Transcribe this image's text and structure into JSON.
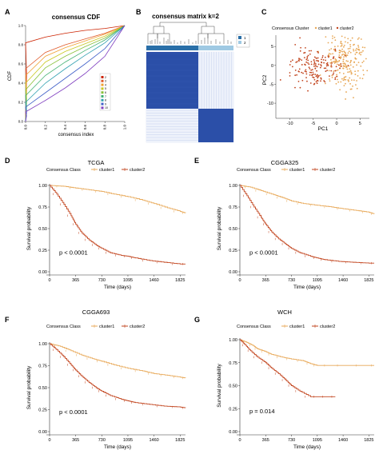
{
  "panels": {
    "A": {
      "letter": "A",
      "title": "consensus CDF",
      "ylabel": "CDF",
      "xlabel": "consensus index"
    },
    "B": {
      "letter": "B",
      "title": "consensus matrix k=2",
      "legend": [
        "1",
        "2"
      ]
    },
    "C": {
      "letter": "C",
      "legend_title": "Consensus Cluster",
      "legend": [
        "cluster1",
        "cluster2"
      ],
      "xlabel": "PC1",
      "ylabel": "PC2"
    },
    "D": {
      "letter": "D",
      "title": "TCGA",
      "pvalue": "p < 0.0001"
    },
    "E": {
      "letter": "E",
      "title": "CGGA325",
      "pvalue": "p < 0.0001"
    },
    "F": {
      "letter": "F",
      "title": "CGGA693",
      "pvalue": "p < 0.0001"
    },
    "G": {
      "letter": "G",
      "title": "WCH",
      "pvalue": "p = 0.014"
    }
  },
  "survival_common": {
    "legend_title": "Consensus Class",
    "series_names": [
      "cluster1",
      "cluster2"
    ],
    "xlabel": "Time (days)",
    "ylabel": "Survival probability"
  },
  "colors": {
    "cluster1": "#e8a857",
    "cluster2": "#c2451f",
    "matrix_blue": "#2b4fa8",
    "cdf_palette": [
      "#cc2200",
      "#e05a2a",
      "#f0a030",
      "#c8c820",
      "#88c038",
      "#40b070",
      "#30a0b0",
      "#4060c8",
      "#8040c0",
      "#c040a0"
    ]
  },
  "chart_data": [
    {
      "panel": "A",
      "type": "line",
      "title": "consensus CDF",
      "xlabel": "consensus index",
      "ylabel": "CDF",
      "xlim": [
        0,
        1
      ],
      "ylim": [
        0,
        1
      ],
      "xticks": [
        "0.0",
        "0.2",
        "0.4",
        "0.6",
        "0.8",
        "1.0"
      ],
      "yticks": [
        "0.0",
        "0.2",
        "0.4",
        "0.6",
        "0.8",
        "1.0"
      ],
      "series": [
        {
          "name": "2",
          "values_at_x": [
            0.82,
            0.88,
            0.92,
            0.95,
            0.97,
            1.0
          ]
        },
        {
          "name": "3",
          "values_at_x": [
            0.55,
            0.72,
            0.8,
            0.86,
            0.92,
            1.0
          ]
        },
        {
          "name": "4",
          "values_at_x": [
            0.48,
            0.68,
            0.77,
            0.84,
            0.91,
            1.0
          ]
        },
        {
          "name": "5",
          "values_at_x": [
            0.4,
            0.62,
            0.73,
            0.81,
            0.89,
            1.0
          ]
        },
        {
          "name": "6",
          "values_at_x": [
            0.33,
            0.56,
            0.68,
            0.78,
            0.87,
            1.0
          ]
        },
        {
          "name": "7",
          "values_at_x": [
            0.27,
            0.48,
            0.62,
            0.74,
            0.85,
            1.0
          ]
        },
        {
          "name": "8",
          "values_at_x": [
            0.2,
            0.4,
            0.55,
            0.69,
            0.82,
            1.0
          ]
        },
        {
          "name": "9",
          "values_at_x": [
            0.15,
            0.3,
            0.45,
            0.6,
            0.76,
            1.0
          ]
        },
        {
          "name": "10",
          "values_at_x": [
            0.1,
            0.22,
            0.35,
            0.5,
            0.68,
            1.0
          ]
        }
      ],
      "x": [
        0.0,
        0.2,
        0.4,
        0.6,
        0.8,
        1.0
      ],
      "legend": [
        "2",
        "3",
        "4",
        "5",
        "6",
        "7",
        "8",
        "9",
        "10"
      ]
    },
    {
      "panel": "C",
      "type": "scatter",
      "xlabel": "PC1",
      "ylabel": "PC2",
      "xlim": [
        -13,
        7
      ],
      "ylim": [
        -14,
        8
      ],
      "xticks": [
        -10,
        -5,
        0,
        5
      ],
      "yticks": [
        5,
        0,
        -5,
        -10
      ],
      "series": [
        {
          "name": "cluster1",
          "center": [
            2.5,
            1.5
          ],
          "spread": [
            2.2,
            3.5
          ]
        },
        {
          "name": "cluster2",
          "center": [
            -4.5,
            -0.5
          ],
          "spread": [
            3.0,
            2.5
          ]
        }
      ]
    },
    {
      "panel": "D",
      "type": "line",
      "title": "TCGA",
      "xlabel": "Time (days)",
      "ylabel": "Survival probability",
      "xlim": [
        0,
        1900
      ],
      "ylim": [
        0,
        1
      ],
      "xticks": [
        0,
        365,
        730,
        1095,
        1460,
        1825
      ],
      "yticks": [
        "0.00",
        "0.25",
        "0.50",
        "0.75",
        "1.00"
      ],
      "series": [
        {
          "name": "cluster1",
          "x": [
            0,
            200,
            365,
            550,
            730,
            900,
            1095,
            1300,
            1460,
            1650,
            1825,
            1900
          ],
          "y": [
            1.0,
            0.99,
            0.97,
            0.95,
            0.93,
            0.9,
            0.87,
            0.83,
            0.79,
            0.74,
            0.7,
            0.68
          ]
        },
        {
          "name": "cluster2",
          "x": [
            0,
            100,
            200,
            300,
            365,
            450,
            550,
            650,
            730,
            850,
            1000,
            1095,
            1200,
            1400,
            1600,
            1825,
            1900
          ],
          "y": [
            1.0,
            0.9,
            0.78,
            0.65,
            0.55,
            0.45,
            0.37,
            0.31,
            0.27,
            0.22,
            0.19,
            0.18,
            0.16,
            0.13,
            0.11,
            0.09,
            0.09
          ]
        }
      ]
    },
    {
      "panel": "E",
      "type": "line",
      "title": "CGGA325",
      "xlabel": "Time (days)",
      "ylabel": "Survival probability",
      "xlim": [
        0,
        1900
      ],
      "ylim": [
        0,
        1
      ],
      "xticks": [
        0,
        365,
        730,
        1095,
        1460,
        1825
      ],
      "yticks": [
        "0.00",
        "0.25",
        "0.50",
        "0.75",
        "1.00"
      ],
      "series": [
        {
          "name": "cluster1",
          "x": [
            0,
            150,
            300,
            450,
            600,
            730,
            900,
            1095,
            1300,
            1460,
            1650,
            1825,
            1900
          ],
          "y": [
            1.0,
            0.98,
            0.94,
            0.9,
            0.86,
            0.82,
            0.79,
            0.77,
            0.75,
            0.73,
            0.71,
            0.69,
            0.67
          ]
        },
        {
          "name": "cluster2",
          "x": [
            0,
            100,
            200,
            300,
            365,
            450,
            550,
            650,
            730,
            850,
            1000,
            1095,
            1200,
            1400,
            1600,
            1825,
            1900
          ],
          "y": [
            1.0,
            0.88,
            0.75,
            0.63,
            0.55,
            0.46,
            0.38,
            0.32,
            0.27,
            0.22,
            0.18,
            0.16,
            0.14,
            0.12,
            0.11,
            0.1,
            0.1
          ]
        }
      ]
    },
    {
      "panel": "F",
      "type": "line",
      "title": "CGGA693",
      "xlabel": "Time (days)",
      "ylabel": "Survival probability",
      "xlim": [
        0,
        1900
      ],
      "ylim": [
        0,
        1
      ],
      "xticks": [
        0,
        365,
        730,
        1095,
        1460,
        1825
      ],
      "yticks": [
        "0.00",
        "0.25",
        "0.50",
        "0.75",
        "1.00"
      ],
      "series": [
        {
          "name": "cluster1",
          "x": [
            0,
            150,
            300,
            450,
            600,
            730,
            900,
            1095,
            1300,
            1460,
            1650,
            1825,
            1900
          ],
          "y": [
            1.0,
            0.97,
            0.92,
            0.87,
            0.83,
            0.8,
            0.76,
            0.72,
            0.69,
            0.66,
            0.64,
            0.62,
            0.61
          ]
        },
        {
          "name": "cluster2",
          "x": [
            0,
            100,
            200,
            300,
            365,
            450,
            550,
            650,
            730,
            850,
            1000,
            1095,
            1200,
            1400,
            1600,
            1825,
            1900
          ],
          "y": [
            1.0,
            0.93,
            0.85,
            0.76,
            0.7,
            0.63,
            0.56,
            0.5,
            0.46,
            0.41,
            0.37,
            0.35,
            0.33,
            0.31,
            0.29,
            0.28,
            0.27
          ]
        }
      ]
    },
    {
      "panel": "G",
      "type": "line",
      "title": "WCH",
      "xlabel": "Time (days)",
      "ylabel": "Survival probability",
      "xlim": [
        0,
        1900
      ],
      "ylim": [
        0,
        1
      ],
      "xticks": [
        0,
        365,
        730,
        1095,
        1460,
        1825
      ],
      "yticks": [
        "0.00",
        "0.25",
        "0.50",
        "0.75",
        "1.00"
      ],
      "series": [
        {
          "name": "cluster1",
          "x": [
            0,
            100,
            180,
            250,
            365,
            450,
            600,
            730,
            900,
            1000,
            1095,
            1300,
            1460,
            1825,
            1900
          ],
          "y": [
            1.0,
            0.97,
            0.94,
            0.9,
            0.87,
            0.84,
            0.81,
            0.79,
            0.77,
            0.74,
            0.72,
            0.72,
            0.72,
            0.72,
            0.72
          ]
        },
        {
          "name": "cluster2",
          "x": [
            0,
            80,
            150,
            250,
            365,
            450,
            550,
            650,
            730,
            850,
            1000,
            1095,
            1250,
            1350
          ],
          "y": [
            1.0,
            0.94,
            0.88,
            0.81,
            0.75,
            0.69,
            0.63,
            0.56,
            0.5,
            0.44,
            0.38,
            0.38,
            0.38,
            0.38
          ]
        }
      ]
    }
  ]
}
